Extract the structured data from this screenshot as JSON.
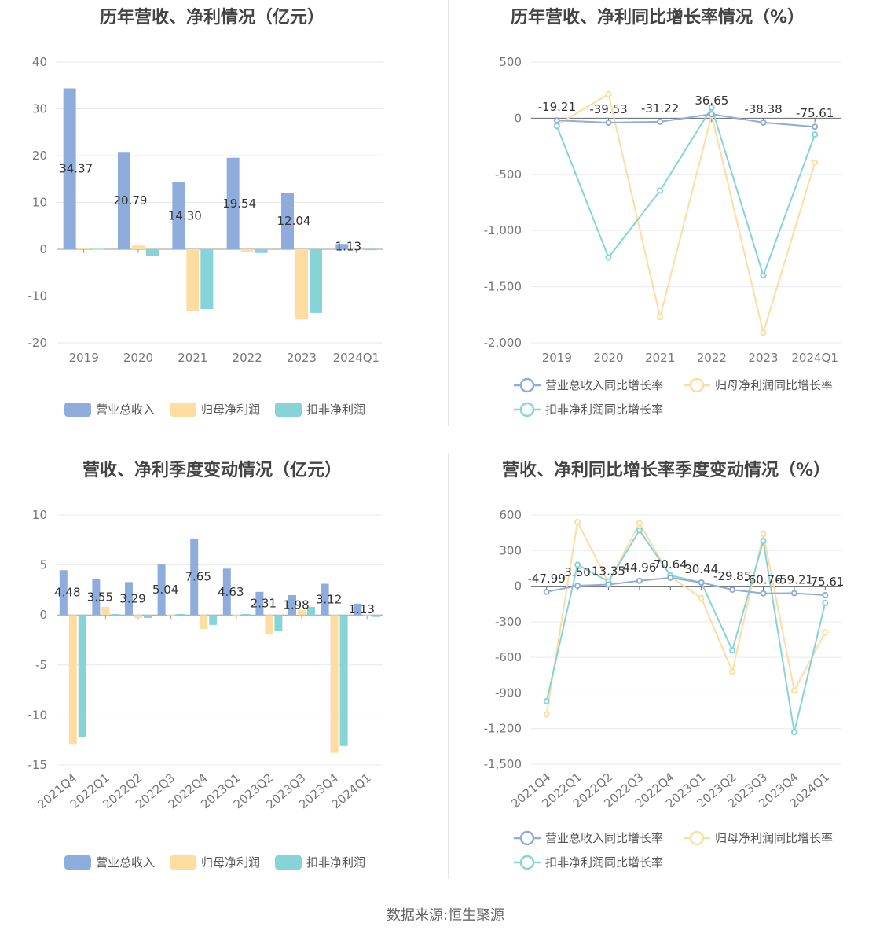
{
  "colors": {
    "revenue": "#8EACDC",
    "netprofit": "#FFDCA0",
    "deducted": "#86D4D8"
  },
  "source_prefix": "数据来源:",
  "source_name": "恒生聚源",
  "chart_data": [
    {
      "type": "bar",
      "title": "历年营收、净利情况（亿元）",
      "categories": [
        "2019",
        "2020",
        "2021",
        "2022",
        "2023",
        "2024Q1"
      ],
      "ylim": [
        -20,
        40
      ],
      "yticks": [
        40,
        30,
        20,
        10,
        0,
        -10,
        -20
      ],
      "grid": true,
      "legend": "bottom",
      "series": [
        {
          "name": "营业总收入",
          "values": [
            34.37,
            20.79,
            14.3,
            19.54,
            12.04,
            1.13
          ]
        },
        {
          "name": "归母净利润",
          "values": [
            0.2,
            0.8,
            -13.3,
            -0.5,
            -15.0,
            -0.15
          ]
        },
        {
          "name": "扣非净利润",
          "values": [
            0.1,
            -1.5,
            -12.8,
            -0.8,
            -13.6,
            -0.2
          ]
        }
      ],
      "data_labels": [
        "34.37",
        "20.79",
        "14.30",
        "19.54",
        "12.04",
        "1.13"
      ]
    },
    {
      "type": "line",
      "title": "历年营收、净利同比增长率情况（%）",
      "categories": [
        "2019",
        "2020",
        "2021",
        "2022",
        "2023",
        "2024Q1"
      ],
      "ylim": [
        -2000,
        500
      ],
      "yticks": [
        "500",
        "0",
        "-500",
        "-1,000",
        "-1,500",
        "-2,000"
      ],
      "yticks_values": [
        500,
        0,
        -500,
        -1000,
        -1500,
        -2000
      ],
      "grid": true,
      "legend": "bottom",
      "series": [
        {
          "name": "营业总收入同比增长率",
          "values": [
            -19.21,
            -39.53,
            -31.22,
            36.65,
            -38.38,
            -75.61
          ]
        },
        {
          "name": "归母净利润同比增长率",
          "values": [
            -60,
            215,
            -1770,
            30,
            -1910,
            -395
          ]
        },
        {
          "name": "扣非净利润同比增长率",
          "values": [
            -70,
            -1240,
            -645,
            95,
            -1400,
            -145
          ]
        }
      ],
      "data_labels": [
        "-19.21",
        "-39.53",
        "-31.22",
        "36.65",
        "-38.38",
        "-75.61"
      ]
    },
    {
      "type": "bar",
      "title": "营收、净利季度变动情况（亿元）",
      "categories": [
        "2021Q4",
        "2022Q1",
        "2022Q2",
        "2022Q3",
        "2022Q4",
        "2023Q1",
        "2023Q2",
        "2023Q3",
        "2023Q4",
        "2024Q1"
      ],
      "ylim": [
        -15,
        10
      ],
      "yticks": [
        10,
        5,
        0,
        -5,
        -10,
        -15
      ],
      "grid": true,
      "legend": "bottom",
      "series": [
        {
          "name": "营业总收入",
          "values": [
            4.48,
            3.55,
            3.29,
            5.04,
            7.65,
            4.63,
            2.31,
            1.98,
            3.12,
            1.13
          ]
        },
        {
          "name": "归母净利润",
          "values": [
            -12.9,
            0.8,
            -0.3,
            0.05,
            -1.4,
            0.05,
            -1.9,
            0.5,
            -13.8,
            -0.15
          ]
        },
        {
          "name": "扣非净利润",
          "values": [
            -12.2,
            0.1,
            -0.3,
            0.1,
            -1.0,
            0.1,
            -1.6,
            0.8,
            -13.1,
            -0.2
          ]
        }
      ],
      "data_labels": [
        "4.48",
        "3.55",
        "3.29",
        "5.04",
        "7.65",
        "4.63",
        "2.31",
        "1.98",
        "3.12",
        "1.13"
      ]
    },
    {
      "type": "line",
      "title": "营收、净利同比增长率季度变动情况（%）",
      "categories": [
        "2021Q4",
        "2022Q1",
        "2022Q2",
        "2022Q3",
        "2022Q4",
        "2023Q1",
        "2023Q2",
        "2023Q3",
        "2023Q4",
        "2024Q1"
      ],
      "ylim": [
        -1500,
        600
      ],
      "yticks": [
        "600",
        "300",
        "0",
        "-300",
        "-600",
        "-900",
        "-1,200",
        "-1,500"
      ],
      "yticks_values": [
        600,
        300,
        0,
        -300,
        -600,
        -900,
        -1200,
        -1500
      ],
      "grid": true,
      "legend": "bottom",
      "series": [
        {
          "name": "营业总收入同比增长率",
          "values": [
            -47.99,
            3.5,
            13.35,
            44.96,
            70.64,
            30.44,
            -29.85,
            -60.76,
            -59.21,
            -75.61
          ]
        },
        {
          "name": "归母净利润同比增长率",
          "values": [
            -1080,
            540,
            30,
            530,
            80,
            -100,
            -720,
            440,
            -880,
            -390
          ]
        },
        {
          "name": "扣非净利润同比增长率",
          "values": [
            -970,
            180,
            40,
            470,
            90,
            30,
            -540,
            380,
            -1230,
            -140
          ]
        }
      ],
      "data_labels": [
        "-47.99",
        "3.50",
        "13.35",
        "44.96",
        "70.64",
        "30.44",
        "-29.85",
        "-60.76",
        "-59.21",
        "-75.61"
      ]
    }
  ]
}
